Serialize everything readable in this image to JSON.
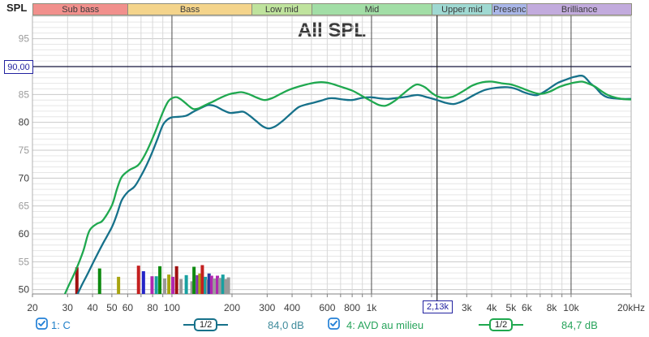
{
  "header": {
    "y_axis_unit": "SPL",
    "bands": [
      {
        "label": "Sub bass",
        "color": "#f1908c",
        "f_start": 20,
        "f_end": 60
      },
      {
        "label": "Bass",
        "color": "#f4d48b",
        "f_start": 60,
        "f_end": 250
      },
      {
        "label": "Low mid",
        "color": "#bfe39d",
        "f_start": 250,
        "f_end": 500
      },
      {
        "label": "Mid",
        "color": "#a2dea6",
        "f_start": 500,
        "f_end": 2000
      },
      {
        "label": "Upper mid",
        "color": "#9fd9d2",
        "f_start": 2000,
        "f_end": 4000
      },
      {
        "label": "Presenc",
        "color": "#a9b6e8",
        "f_start": 4000,
        "f_end": 6000
      },
      {
        "label": "Brilliance",
        "color": "#c2abdd",
        "f_start": 6000,
        "f_end": 20000
      }
    ]
  },
  "chart_data": {
    "type": "line",
    "title": "All SPL",
    "x_axis": {
      "scale": "log",
      "min_hz": 20,
      "max_hz": 20000,
      "gridlines_hz": [
        20,
        30,
        40,
        50,
        60,
        70,
        80,
        90,
        100,
        200,
        300,
        400,
        500,
        600,
        700,
        800,
        900,
        1000,
        2000,
        3000,
        4000,
        5000,
        6000,
        7000,
        8000,
        9000,
        10000,
        20000
      ],
      "decade_lines_hz": [
        100,
        1000,
        10000
      ],
      "ticks": [
        [
          20,
          "20"
        ],
        [
          30,
          "30"
        ],
        [
          40,
          "40"
        ],
        [
          50,
          "50"
        ],
        [
          60,
          "60"
        ],
        [
          80,
          "80"
        ],
        [
          100,
          "100"
        ],
        [
          200,
          "200"
        ],
        [
          300,
          "300"
        ],
        [
          400,
          "400"
        ],
        [
          600,
          "600"
        ],
        [
          800,
          "800"
        ],
        [
          1000,
          "1k"
        ],
        [
          3000,
          "3k"
        ],
        [
          4000,
          "4k"
        ],
        [
          5000,
          "5k"
        ],
        [
          6000,
          "6k"
        ],
        [
          8000,
          "8k"
        ],
        [
          10000,
          "10k"
        ],
        [
          20000,
          "20kHz"
        ]
      ]
    },
    "y_axis": {
      "unit": "dB SPL",
      "min": 49.2,
      "max": 99.2,
      "minor_step_db": 1,
      "labeled_ticks": [
        50,
        55,
        60,
        65,
        70,
        75,
        80,
        85,
        95
      ]
    },
    "cursor": {
      "db": 90,
      "db_label": "90,00",
      "hz": 2130,
      "hz_label": "2,13k"
    },
    "series": [
      {
        "name": "1: C",
        "color": "#16718a",
        "points": [
          [
            33,
            48.5
          ],
          [
            35,
            50.5
          ],
          [
            38,
            53
          ],
          [
            41,
            55.4
          ],
          [
            45,
            58.2
          ],
          [
            50,
            61.2
          ],
          [
            53,
            63.5
          ],
          [
            56,
            66
          ],
          [
            60,
            67.5
          ],
          [
            65,
            68.5
          ],
          [
            70,
            70.4
          ],
          [
            75,
            72.5
          ],
          [
            80,
            74.8
          ],
          [
            85,
            77.2
          ],
          [
            90,
            79.5
          ],
          [
            95,
            80.5
          ],
          [
            100,
            80.9
          ],
          [
            108,
            81
          ],
          [
            118,
            81.2
          ],
          [
            128,
            81.9
          ],
          [
            140,
            82.6
          ],
          [
            152,
            83.1
          ],
          [
            165,
            82.9
          ],
          [
            180,
            82.2
          ],
          [
            195,
            81.7
          ],
          [
            212,
            81.8
          ],
          [
            228,
            81.9
          ],
          [
            245,
            81.2
          ],
          [
            265,
            80.2
          ],
          [
            285,
            79.3
          ],
          [
            305,
            78.9
          ],
          [
            330,
            79.3
          ],
          [
            360,
            80.3
          ],
          [
            395,
            81.6
          ],
          [
            430,
            82.7
          ],
          [
            470,
            83.2
          ],
          [
            510,
            83.5
          ],
          [
            560,
            83.9
          ],
          [
            610,
            84.3
          ],
          [
            660,
            84.3
          ],
          [
            720,
            84.1
          ],
          [
            800,
            84
          ],
          [
            900,
            84.4
          ],
          [
            1000,
            84.5
          ],
          [
            1100,
            84.3
          ],
          [
            1220,
            84.2
          ],
          [
            1350,
            84.4
          ],
          [
            1500,
            84.6
          ],
          [
            1700,
            84.9
          ],
          [
            1900,
            84.5
          ],
          [
            2130,
            84
          ],
          [
            2350,
            83.5
          ],
          [
            2600,
            83.3
          ],
          [
            2900,
            83.9
          ],
          [
            3300,
            85
          ],
          [
            3700,
            85.8
          ],
          [
            4200,
            86.2
          ],
          [
            4800,
            86.3
          ],
          [
            5300,
            86
          ],
          [
            5800,
            85.4
          ],
          [
            6300,
            85
          ],
          [
            6800,
            84.9
          ],
          [
            7500,
            85.7
          ],
          [
            8500,
            87
          ],
          [
            9500,
            87.7
          ],
          [
            10500,
            88.2
          ],
          [
            11500,
            88.3
          ],
          [
            12500,
            87
          ],
          [
            13300,
            86.2
          ],
          [
            14200,
            85.1
          ],
          [
            15200,
            84.5
          ],
          [
            16500,
            84.3
          ],
          [
            18000,
            84.2
          ],
          [
            20000,
            84.2
          ]
        ]
      },
      {
        "name": "4: AVD au milieu",
        "color": "#1fa84f",
        "points": [
          [
            28.5,
            48.5
          ],
          [
            30,
            50.3
          ],
          [
            33,
            53.5
          ],
          [
            36,
            57
          ],
          [
            38.5,
            60.5
          ],
          [
            42,
            61.8
          ],
          [
            45,
            62.4
          ],
          [
            50,
            65.1
          ],
          [
            53,
            68
          ],
          [
            56,
            70.2
          ],
          [
            61,
            71.4
          ],
          [
            68,
            72.4
          ],
          [
            74,
            74.5
          ],
          [
            81,
            77.6
          ],
          [
            86,
            80
          ],
          [
            91,
            82.2
          ],
          [
            96,
            83.8
          ],
          [
            101,
            84.4
          ],
          [
            106,
            84.5
          ],
          [
            113,
            83.9
          ],
          [
            121,
            83
          ],
          [
            128,
            82.4
          ],
          [
            136,
            82.5
          ],
          [
            147,
            83.1
          ],
          [
            160,
            83.7
          ],
          [
            175,
            84.4
          ],
          [
            192,
            85
          ],
          [
            210,
            85.3
          ],
          [
            225,
            85.4
          ],
          [
            245,
            85
          ],
          [
            268,
            84.4
          ],
          [
            292,
            84
          ],
          [
            320,
            84.4
          ],
          [
            350,
            85.1
          ],
          [
            390,
            85.9
          ],
          [
            440,
            86.5
          ],
          [
            500,
            87
          ],
          [
            560,
            87.2
          ],
          [
            620,
            87
          ],
          [
            700,
            86.4
          ],
          [
            800,
            85.7
          ],
          [
            900,
            84.7
          ],
          [
            1000,
            83.8
          ],
          [
            1090,
            83.1
          ],
          [
            1180,
            83
          ],
          [
            1300,
            83.8
          ],
          [
            1450,
            85.2
          ],
          [
            1600,
            86.4
          ],
          [
            1700,
            86.8
          ],
          [
            1850,
            86.3
          ],
          [
            2000,
            85.3
          ],
          [
            2130,
            84.7
          ],
          [
            2300,
            84.4
          ],
          [
            2550,
            84.6
          ],
          [
            2850,
            85.5
          ],
          [
            3200,
            86.6
          ],
          [
            3600,
            87.2
          ],
          [
            4000,
            87.3
          ],
          [
            4500,
            87
          ],
          [
            5000,
            86.8
          ],
          [
            5600,
            86.2
          ],
          [
            6300,
            85.5
          ],
          [
            7000,
            85.1
          ],
          [
            7800,
            85.5
          ],
          [
            8800,
            86.4
          ],
          [
            10000,
            87
          ],
          [
            11300,
            87.3
          ],
          [
            12300,
            86.9
          ],
          [
            13200,
            86.4
          ],
          [
            14200,
            85.6
          ],
          [
            15300,
            84.9
          ],
          [
            16500,
            84.5
          ],
          [
            18000,
            84.2
          ],
          [
            20000,
            84.1
          ]
        ]
      }
    ],
    "bars": [
      [
        33.4,
        54,
        "#a01010"
      ],
      [
        43.4,
        53.8,
        "#0e8a10"
      ],
      [
        54,
        52.3,
        "#a8a410"
      ],
      [
        68,
        54.3,
        "#c42020"
      ],
      [
        72,
        53.3,
        "#2424c8"
      ],
      [
        79.5,
        52.4,
        "#b028b0"
      ],
      [
        83.5,
        52.4,
        "#18a0a0"
      ],
      [
        87,
        54.2,
        "#0e8a10"
      ],
      [
        92,
        52,
        "#9a9a9a"
      ],
      [
        96.5,
        52.7,
        "#a8a410"
      ],
      [
        101,
        52.3,
        "#b028b0"
      ],
      [
        105.5,
        54.2,
        "#a01010"
      ],
      [
        111,
        51.9,
        "#9a9a9a"
      ],
      [
        118,
        52.6,
        "#18a0a0"
      ],
      [
        126,
        51.5,
        "#9a9a9a"
      ],
      [
        129,
        54.1,
        "#0e8a10"
      ],
      [
        134,
        52.6,
        "#8034a8"
      ],
      [
        138,
        52.9,
        "#a8a410"
      ],
      [
        142,
        54.4,
        "#c42020"
      ],
      [
        147,
        52.3,
        "#18a0a0"
      ],
      [
        151,
        51.8,
        "#9a9a9a"
      ],
      [
        153.5,
        52.9,
        "#2838a0"
      ],
      [
        158,
        52.5,
        "#b028b0"
      ],
      [
        163,
        52,
        "#9a9a9a"
      ],
      [
        169,
        52.5,
        "#b028b0"
      ],
      [
        174,
        52.1,
        "#9a9a9a"
      ],
      [
        180,
        52.7,
        "#18a0a0"
      ],
      [
        186,
        51.9,
        "#9a9a9a"
      ],
      [
        192,
        52.2,
        "#9a9a9a"
      ]
    ]
  },
  "legend": {
    "checkbox_color": "#2481d7",
    "trace1": {
      "label": "1: C",
      "label_color": "#1e7ec8",
      "smoothing": "1/2",
      "value": "84,0 dB",
      "value_color": "#3f8b9b",
      "checked": true
    },
    "trace2": {
      "label": "4: AVD au milieu",
      "label_color": "#28a45c",
      "smoothing": "1/2",
      "value": "84,7 dB",
      "value_color": "#28a45c",
      "checked": true
    }
  }
}
